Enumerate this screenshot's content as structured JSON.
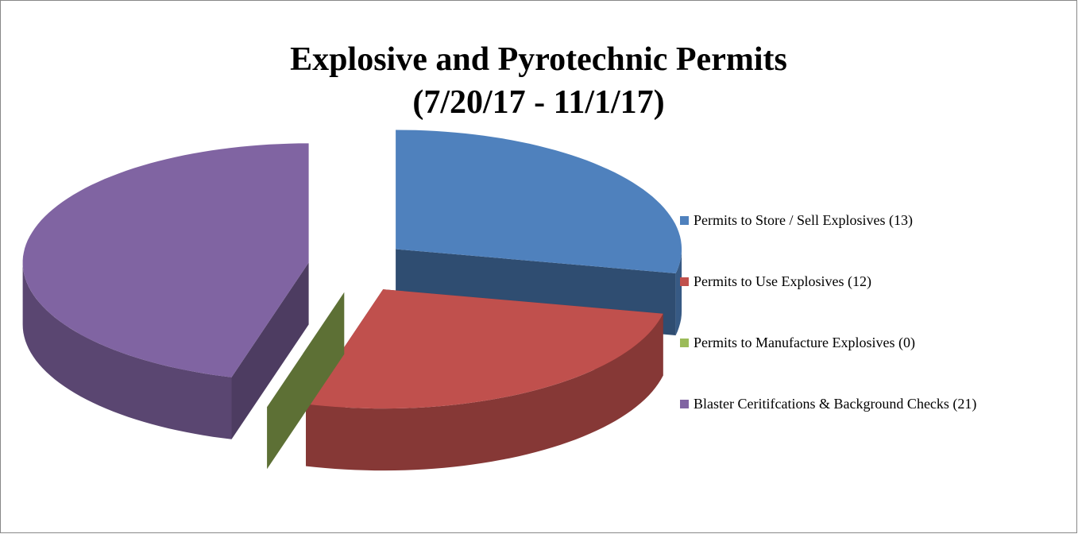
{
  "chart_data": {
    "type": "pie3d",
    "title": "Explosive and Pyrotechnic Permits",
    "subtitle": "(7/20/17 - 11/1/17)",
    "categories": [
      "Permits to Store / Sell Explosives (13)",
      "Permits to Use Explosives (12)",
      "Permits to Manufacture Explosives (0)",
      "Blaster Ceritifcations & Background Checks (21)"
    ],
    "values": [
      13,
      12,
      0,
      21
    ],
    "colors": [
      "#4f81bd",
      "#c0504d",
      "#9bbb59",
      "#8064a2"
    ],
    "legend": "right"
  }
}
